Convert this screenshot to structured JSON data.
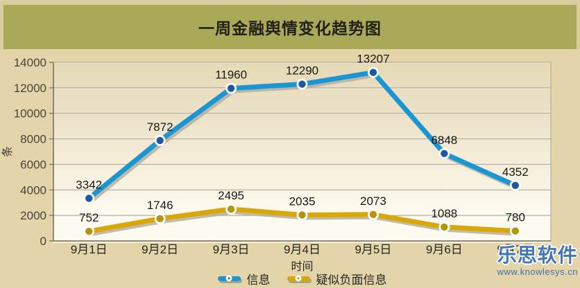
{
  "watermark": {
    "name": "乐思软件",
    "url": "www.knowlesys.cn"
  },
  "colors": {
    "frame_background": "#e3d5a9",
    "title_band": "#a9a958",
    "outer_border": "#d9cc9f",
    "plot_gradient_top": "#e6dab6",
    "plot_gradient_bottom": "#fdfaf0",
    "gridline": "#a8a294",
    "axis": "#6f6a5c",
    "line_shadow": "#b5afa0",
    "watermark_blue": "#4277b6"
  },
  "chart_data": {
    "type": "line",
    "title": "一周金融舆情变化趋势图",
    "xlabel": "时间",
    "ylabel": "条",
    "categories": [
      "9月1日",
      "9月2日",
      "9月3日",
      "9月4日",
      "9月5日",
      "9月6日",
      "9月7日"
    ],
    "series": [
      {
        "name": "信息",
        "values": [
          3342,
          7872,
          11960,
          12290,
          13207,
          6848,
          4352
        ],
        "line_color": "#1a96d5",
        "marker_color": "#1a5aa5"
      },
      {
        "name": "疑似负面信息",
        "values": [
          752,
          1746,
          2495,
          2035,
          2073,
          1088,
          780
        ],
        "line_color": "#d9a808",
        "marker_color": "#b5930d"
      }
    ],
    "ylim": [
      0,
      14000
    ],
    "ytick_step": 2000,
    "grid": true,
    "data_labels": true,
    "legend_position": "bottom"
  }
}
